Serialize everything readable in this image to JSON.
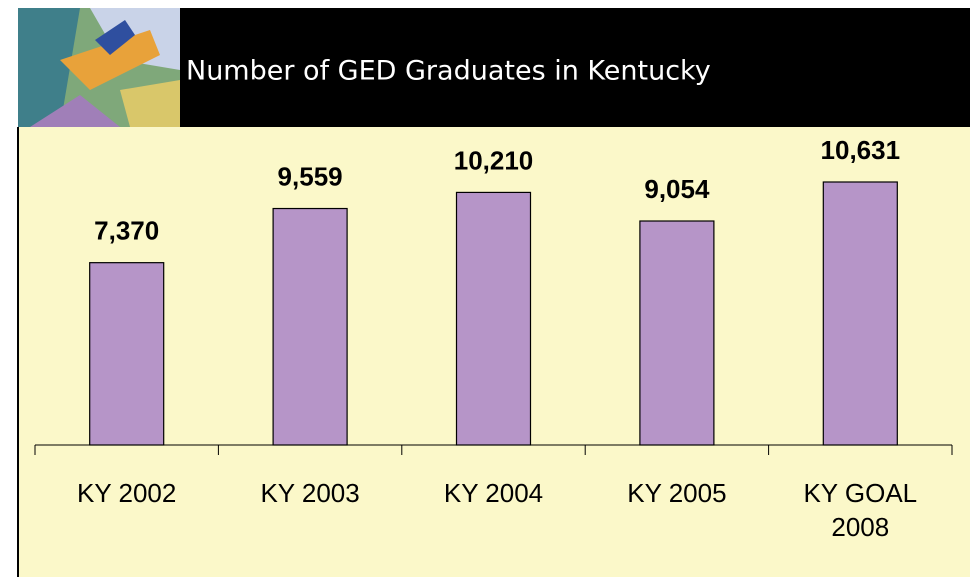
{
  "chart_data": {
    "type": "bar",
    "title": "Number of GED Graduates in Kentucky",
    "categories": [
      "KY 2002",
      "KY 2003",
      "KY 2004",
      "KY 2005",
      "KY GOAL 2008"
    ],
    "values": [
      7370,
      9559,
      10210,
      9054,
      10631
    ],
    "value_labels": [
      "7,370",
      "9,559",
      "10,210",
      "9,054",
      "10,631"
    ],
    "color": "#b695c8"
  }
}
